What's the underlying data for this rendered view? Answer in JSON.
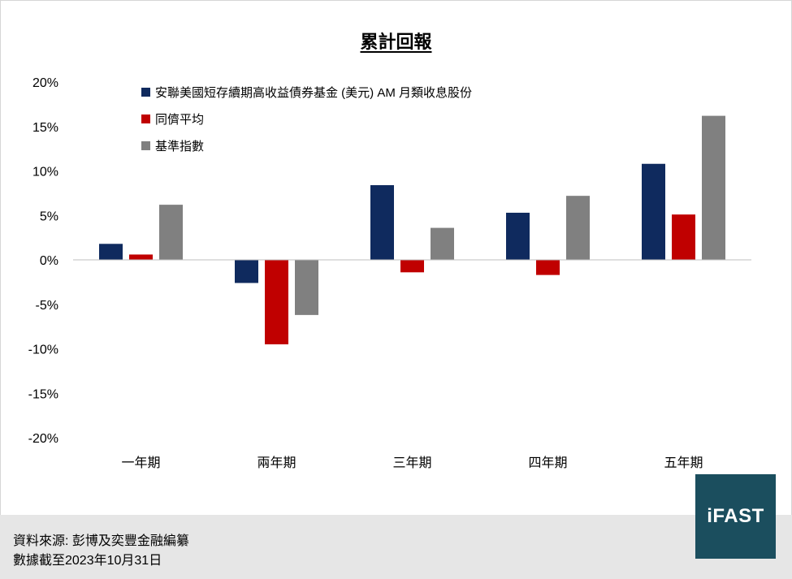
{
  "chart_data": {
    "type": "bar",
    "title": "累計回報",
    "categories": [
      "一年期",
      "兩年期",
      "三年期",
      "四年期",
      "五年期"
    ],
    "series": [
      {
        "name": "安聯美國短存續期高收益債券基金 (美元) AM 月類收息股份",
        "color": "#0f2a5e",
        "values": [
          1.8,
          -2.6,
          8.4,
          5.3,
          10.8
        ]
      },
      {
        "name": "同儕平均",
        "color": "#c00000",
        "values": [
          0.6,
          -9.5,
          -1.4,
          -1.7,
          5.1
        ]
      },
      {
        "name": "基準指數",
        "color": "#808080",
        "values": [
          6.2,
          -6.2,
          3.6,
          7.2,
          16.2
        ]
      }
    ],
    "yticks": [
      "20%",
      "15%",
      "10%",
      "5%",
      "0%",
      "-5%",
      "-10%",
      "-15%",
      "-20%"
    ],
    "ylim": [
      -20,
      20
    ],
    "grid": false,
    "legend_position": "top-left"
  },
  "footer": {
    "source": "資料來源: 彭博及奕豐金融編纂",
    "date": "數據截至2023年10月31日"
  },
  "logo": {
    "text": "iFAST"
  }
}
